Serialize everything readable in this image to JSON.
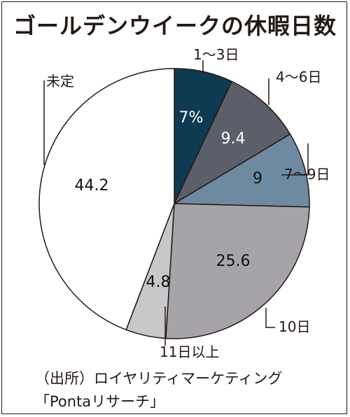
{
  "title": "ゴールデンウイークの休暇日数",
  "chart_data": {
    "type": "pie",
    "title": "ゴールデンウイークの休暇日数",
    "slices": [
      {
        "label": "1～3日",
        "value": 7,
        "value_label": "7%",
        "color": "#0e3a52",
        "text_color": "#ffffff"
      },
      {
        "label": "4～6日",
        "value": 9.4,
        "value_label": "9.4",
        "color": "#5a5f6a",
        "text_color": "#ffffff"
      },
      {
        "label": "7～9日",
        "value": 9,
        "value_label": "9",
        "color": "#6e8aa0",
        "text_color": "#111111"
      },
      {
        "label": "10日",
        "value": 25.6,
        "value_label": "25.6",
        "color": "#a6a3a9",
        "text_color": "#111111"
      },
      {
        "label": "11日以上",
        "value": 4.8,
        "value_label": "4.8",
        "color": "#c8c8cb",
        "text_color": "#111111"
      },
      {
        "label": "未定",
        "value": 44.2,
        "value_label": "44.2",
        "color": "#ffffff",
        "text_color": "#111111"
      }
    ]
  },
  "source": {
    "line1": "（出所）ロイヤリティマーケティング",
    "line2": "「Pontaリサーチ」"
  }
}
